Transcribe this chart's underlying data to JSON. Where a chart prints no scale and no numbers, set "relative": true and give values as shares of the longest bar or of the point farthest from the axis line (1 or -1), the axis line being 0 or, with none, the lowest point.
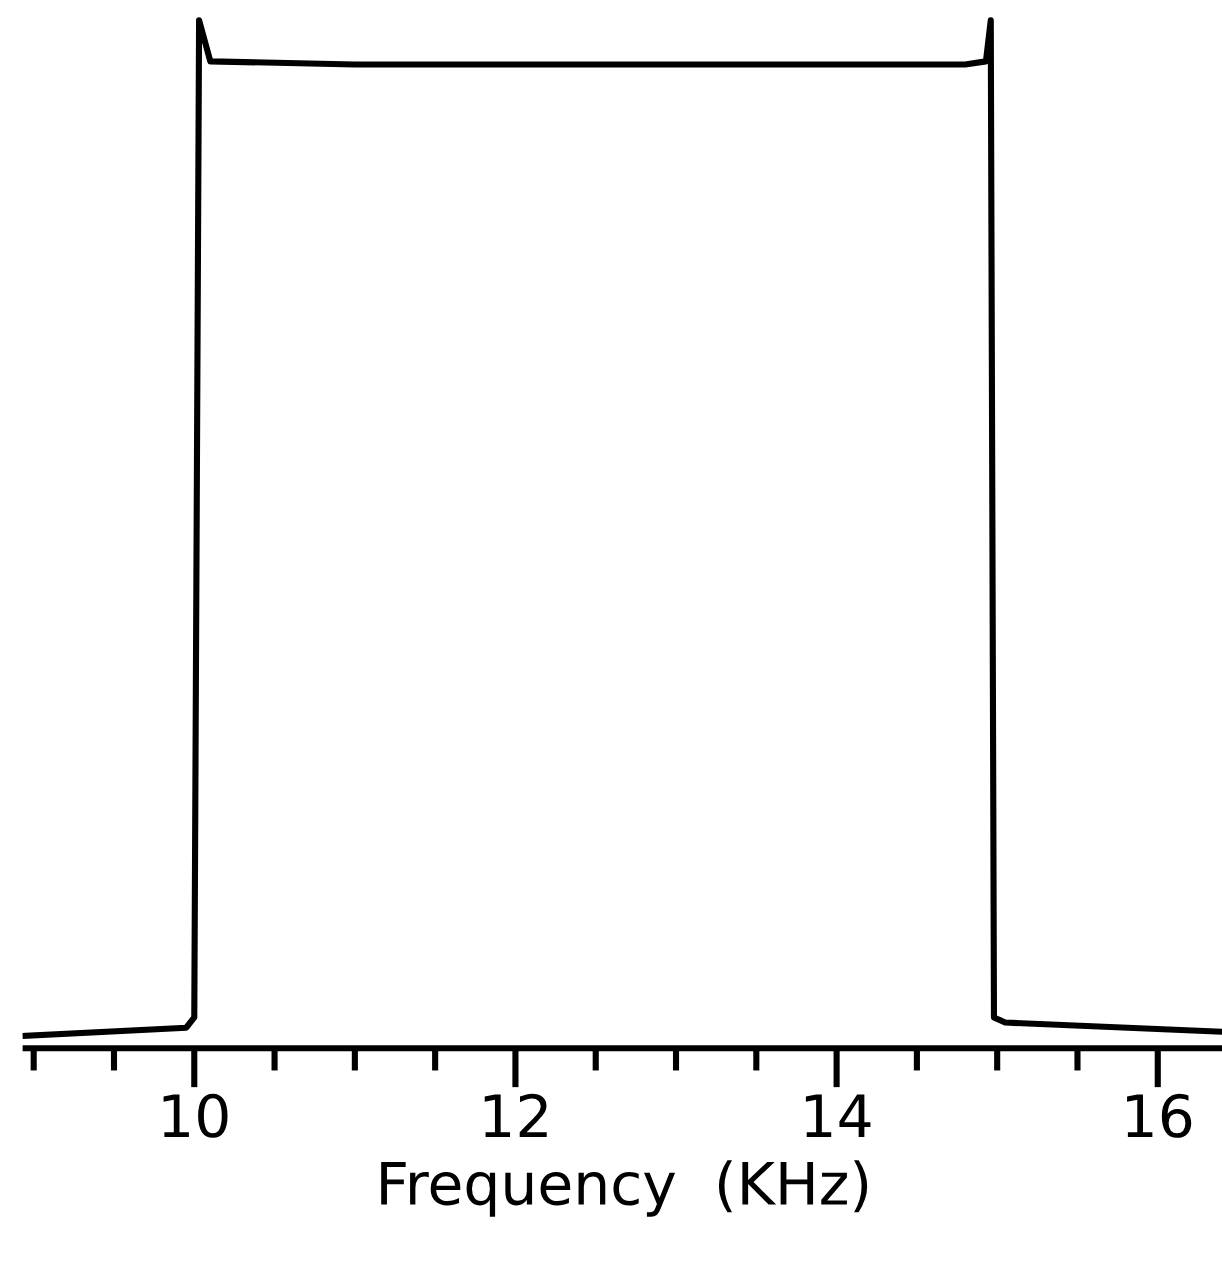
{
  "chart_data": {
    "type": "line",
    "xlabel": "Frequency  (KHz)",
    "relative": true,
    "series": [
      {
        "color": "#000000",
        "x": [
          8.95,
          9.95,
          10.0,
          10.03,
          10.1,
          11.0,
          14.8,
          14.93,
          14.96,
          14.98,
          15.05,
          16.4
        ],
        "values": [
          0.012,
          0.02,
          0.03,
          1.0,
          0.96,
          0.957,
          0.957,
          0.96,
          1.0,
          0.03,
          0.025,
          0.016
        ]
      }
    ],
    "xlim": [
      8.95,
      16.4
    ],
    "xticks": [
      {
        "value": 9,
        "label": null
      },
      {
        "value": 9.5,
        "label": null
      },
      10,
      {
        "value": 10.5,
        "label": null
      },
      {
        "value": 11,
        "label": null
      },
      {
        "value": 11.5,
        "label": null
      },
      12,
      {
        "value": 12.5,
        "label": null
      },
      {
        "value": 13,
        "label": null
      },
      {
        "value": 13.5,
        "label": null
      },
      14,
      {
        "value": 14.5,
        "label": null
      },
      {
        "value": 15,
        "label": null
      },
      {
        "value": 15.5,
        "label": null
      },
      16
    ],
    "tick_labels": "x",
    "grid": false,
    "marker": "none",
    "line_style": "solid"
  }
}
